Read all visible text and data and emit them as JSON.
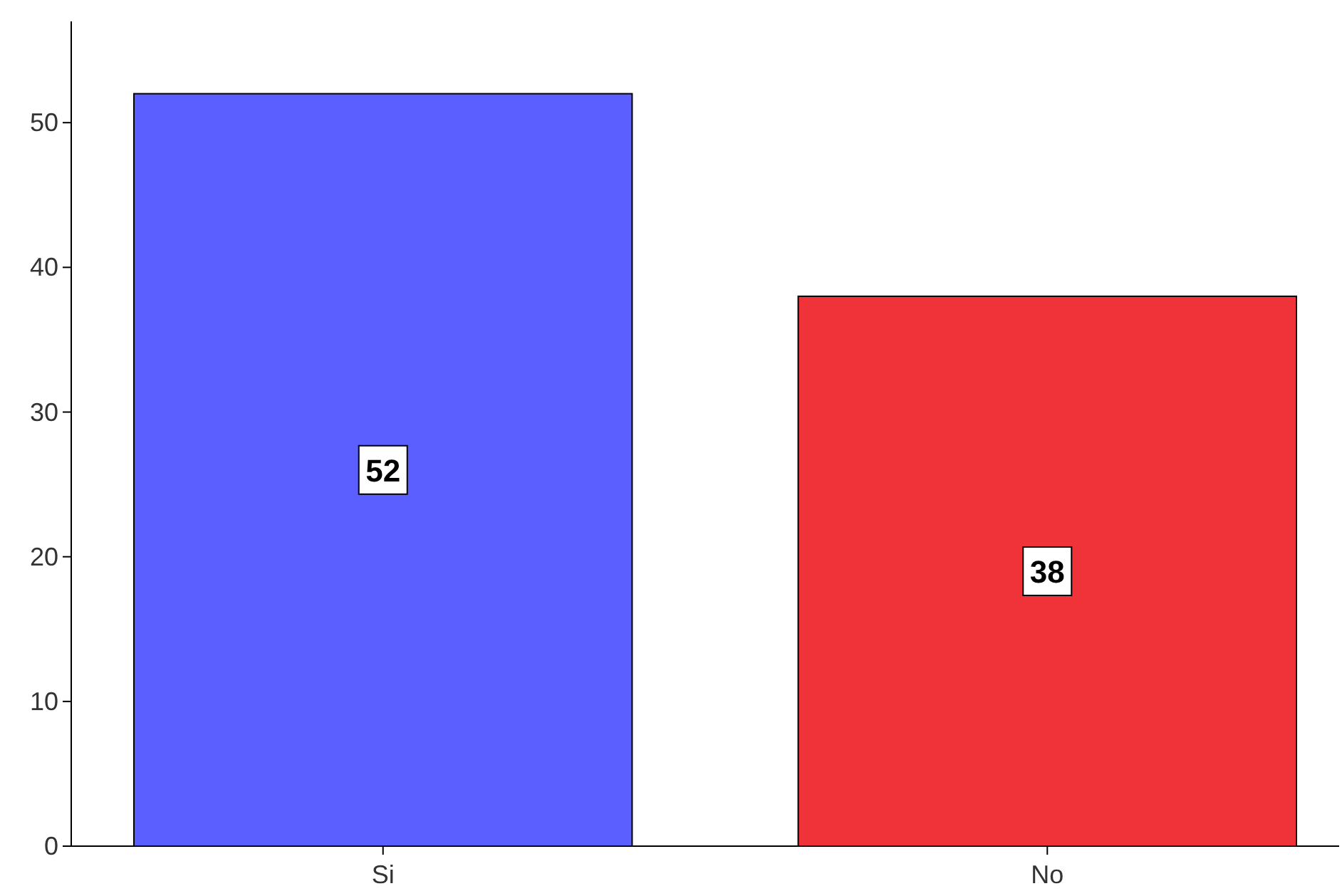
{
  "chart_data": {
    "type": "bar",
    "categories": [
      "Si",
      "No"
    ],
    "series": [
      {
        "values": [
          52,
          38
        ],
        "colors": [
          "#5b5fff",
          "#f03339"
        ]
      }
    ],
    "ylim": [
      0,
      57
    ],
    "yticks": [
      0,
      10,
      20,
      30,
      40,
      50
    ],
    "grid": false,
    "data_labels": true
  }
}
